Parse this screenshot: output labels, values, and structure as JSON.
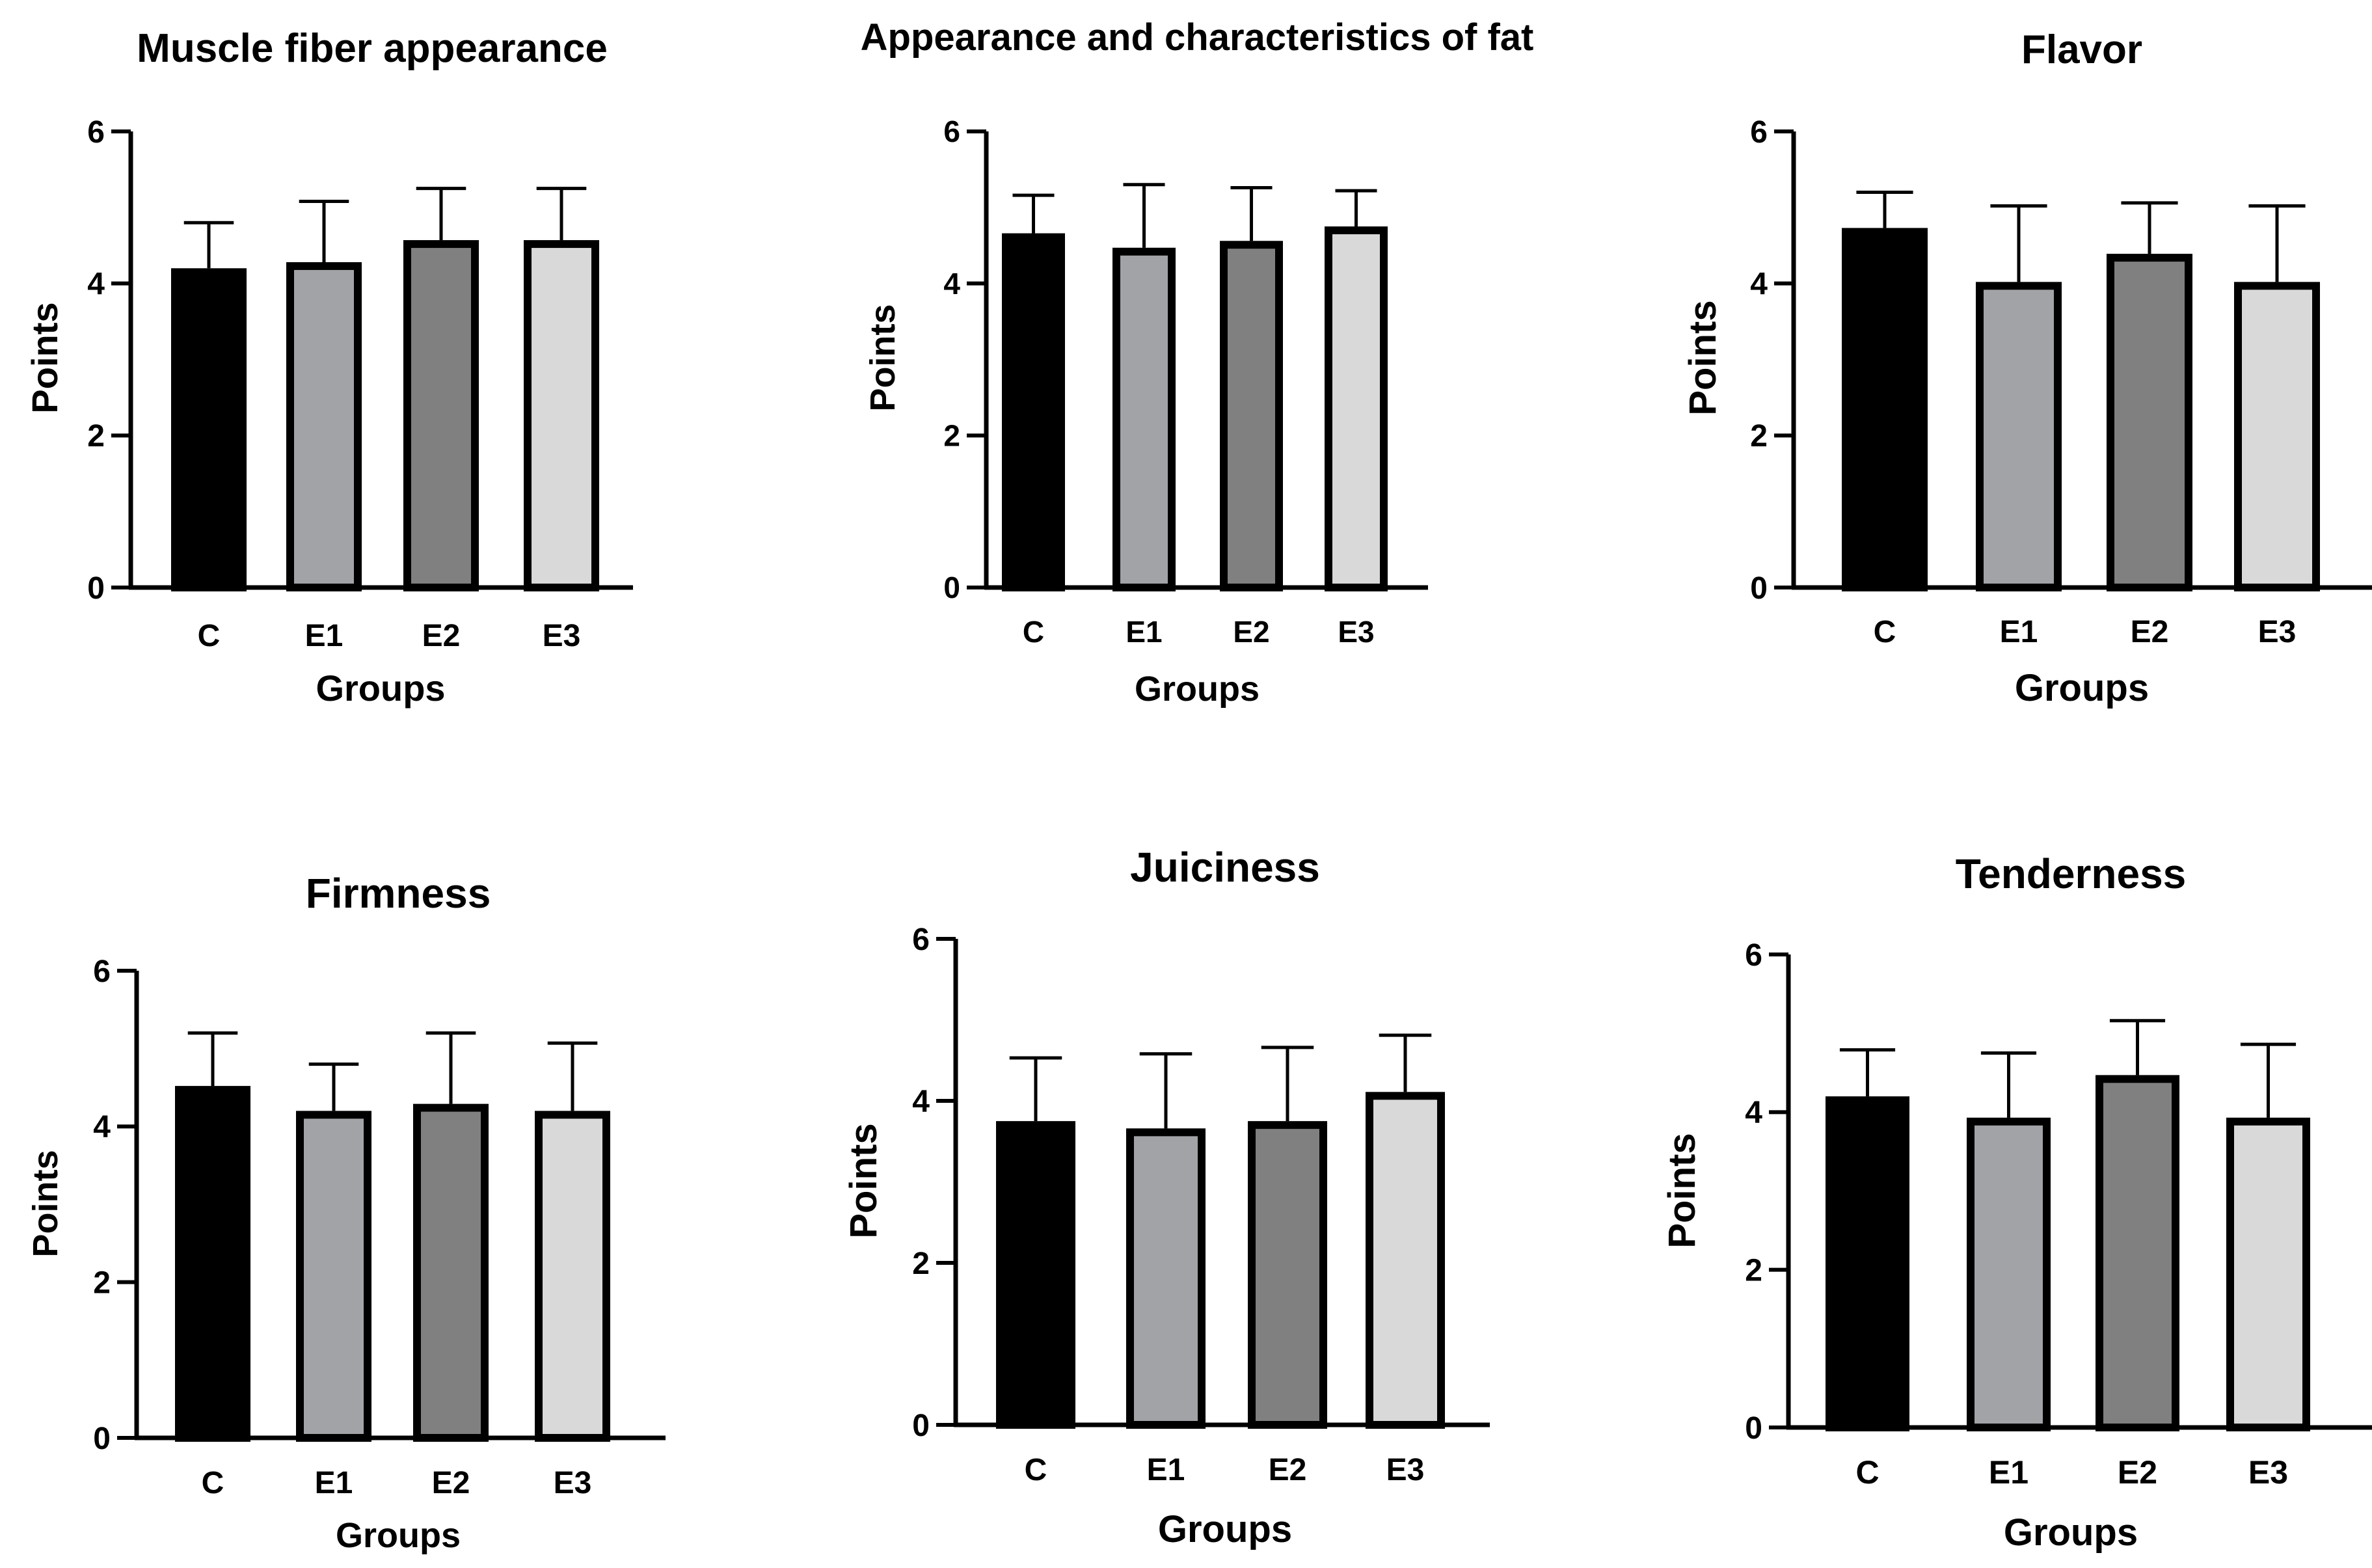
{
  "colors": {
    "C": "#000000",
    "E1": "#a2a3a7",
    "E2": "#808080",
    "E3": "#d9d9d9",
    "axis": "#000000"
  },
  "chart_data": [
    {
      "type": "bar",
      "title": "Muscle fiber appearance",
      "xlabel": "Groups",
      "ylabel": "Points",
      "categories": [
        "C",
        "E1",
        "E2",
        "E3"
      ],
      "values": [
        4.2,
        4.28,
        4.57,
        4.57
      ],
      "errors": [
        0.6,
        0.8,
        0.68,
        0.68
      ],
      "ylim": [
        0,
        6
      ],
      "yticks": [
        "0",
        "2",
        "4",
        "6"
      ]
    },
    {
      "type": "bar",
      "title": "Appearance and characteristics of fat",
      "xlabel": "Groups",
      "ylabel": "Points",
      "categories": [
        "C",
        "E1",
        "E2",
        "E3"
      ],
      "values": [
        4.66,
        4.47,
        4.56,
        4.75
      ],
      "errors": [
        0.5,
        0.83,
        0.7,
        0.47
      ],
      "ylim": [
        0,
        6
      ],
      "yticks": [
        "0",
        "2",
        "4",
        "6"
      ]
    },
    {
      "type": "bar",
      "title": "Flavor",
      "xlabel": "Groups",
      "ylabel": "Points",
      "categories": [
        "C",
        "E1",
        "E2",
        "E3"
      ],
      "values": [
        4.73,
        4.02,
        4.39,
        4.02
      ],
      "errors": [
        0.47,
        1.0,
        0.67,
        1.0
      ],
      "ylim": [
        0,
        6
      ],
      "yticks": [
        "0",
        "2",
        "4",
        "6"
      ]
    },
    {
      "type": "bar",
      "title": "Firmness",
      "xlabel": "Groups",
      "ylabel": "Points",
      "categories": [
        "C",
        "E1",
        "E2",
        "E3"
      ],
      "values": [
        4.52,
        4.2,
        4.29,
        4.2
      ],
      "errors": [
        0.68,
        0.6,
        0.91,
        0.87
      ],
      "ylim": [
        0,
        6
      ],
      "yticks": [
        "0",
        "2",
        "4",
        "6"
      ]
    },
    {
      "type": "bar",
      "title": "Juiciness",
      "xlabel": "Groups",
      "ylabel": "Points",
      "categories": [
        "C",
        "E1",
        "E2",
        "E3"
      ],
      "values": [
        3.75,
        3.66,
        3.75,
        4.11
      ],
      "errors": [
        0.78,
        0.92,
        0.91,
        0.7
      ],
      "ylim": [
        0,
        6
      ],
      "yticks": [
        "0",
        "2",
        "4",
        "6"
      ]
    },
    {
      "type": "bar",
      "title": "Tenderness",
      "xlabel": "Groups",
      "ylabel": "Points",
      "categories": [
        "C",
        "E1",
        "E2",
        "E3"
      ],
      "values": [
        4.2,
        3.93,
        4.47,
        3.93
      ],
      "errors": [
        0.59,
        0.82,
        0.69,
        0.93
      ],
      "ylim": [
        0,
        6
      ],
      "yticks": [
        "0",
        "2",
        "4",
        "6"
      ]
    }
  ]
}
